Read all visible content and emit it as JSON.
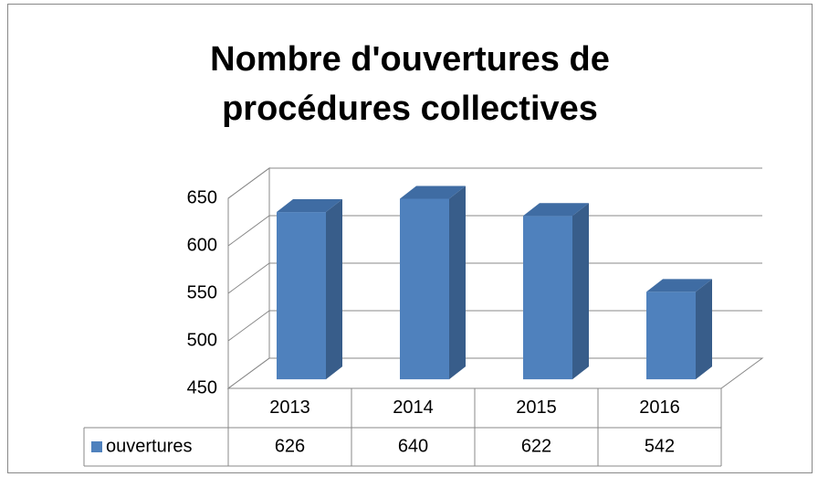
{
  "chart_data": {
    "type": "bar3d",
    "title": "Nombre d'ouvertures de procédures collectives",
    "categories": [
      "2013",
      "2014",
      "2015",
      "2016"
    ],
    "series": [
      {
        "name": "ouvertures",
        "color": "#4f81bd",
        "values": [
          626,
          640,
          622,
          542
        ]
      }
    ],
    "ylim": [
      450,
      650
    ],
    "yticks": [
      450,
      500,
      550,
      600,
      650
    ],
    "grid": true,
    "legend": "table"
  }
}
